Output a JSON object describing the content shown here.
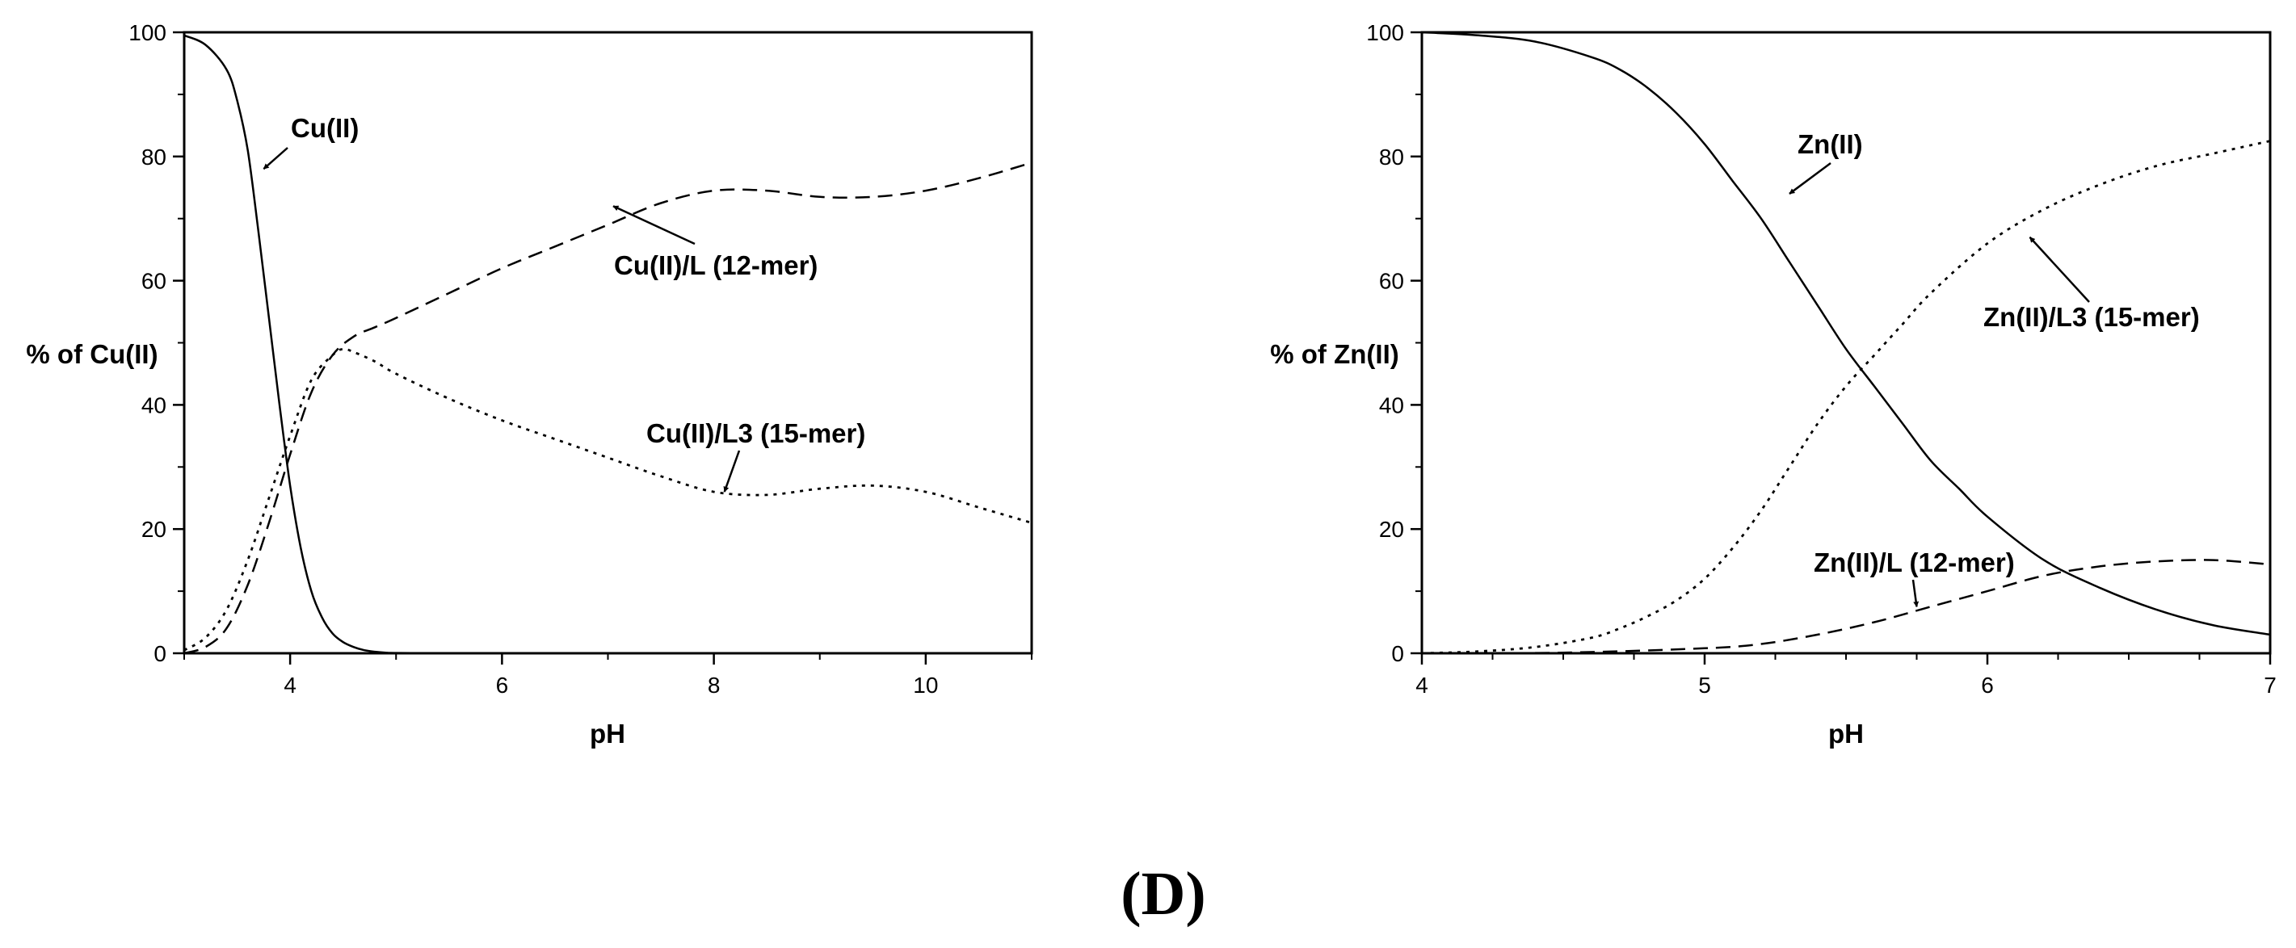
{
  "caption": "(D)",
  "chart_data": [
    {
      "type": "line",
      "xlabel": "pH",
      "ylabel": "% of Cu(II)",
      "xlim": [
        3,
        11
      ],
      "ylim": [
        0,
        100
      ],
      "x_ticks": [
        4,
        6,
        8,
        10
      ],
      "y_ticks": [
        0,
        20,
        40,
        60,
        80,
        100
      ],
      "grid": false,
      "series": [
        {
          "name": "Cu(II)",
          "style": "solid",
          "x": [
            3.0,
            3.2,
            3.4,
            3.5,
            3.6,
            3.7,
            3.8,
            3.9,
            4.0,
            4.1,
            4.2,
            4.3,
            4.4,
            4.5,
            4.6,
            4.7,
            4.8,
            4.9,
            5.0,
            5.5,
            6.0,
            8.0,
            11.0
          ],
          "y": [
            99.5,
            98,
            94,
            89,
            81,
            68,
            54,
            40,
            27,
            17,
            10,
            5.8,
            3.2,
            1.8,
            1.0,
            0.5,
            0.25,
            0.1,
            0.05,
            0,
            0,
            0,
            0
          ]
        },
        {
          "name": "Cu(II)/L (12-mer)",
          "style": "dashed",
          "x": [
            3.0,
            3.2,
            3.4,
            3.6,
            3.8,
            4.0,
            4.2,
            4.4,
            4.6,
            4.8,
            5.0,
            5.5,
            6.0,
            6.5,
            7.0,
            7.5,
            8.0,
            8.5,
            9.0,
            9.5,
            10.0,
            10.5,
            11.0
          ],
          "y": [
            0,
            1,
            4,
            11,
            21,
            32,
            42,
            48,
            51,
            52.5,
            54,
            58,
            62,
            65.5,
            69,
            72.5,
            74.5,
            74.5,
            73.5,
            73.5,
            74.5,
            76.5,
            79
          ]
        },
        {
          "name": "Cu(II)/L3 (15-mer)",
          "style": "dotted",
          "x": [
            3.0,
            3.2,
            3.4,
            3.6,
            3.8,
            4.0,
            4.2,
            4.4,
            4.5,
            4.6,
            4.8,
            5.0,
            5.5,
            6.0,
            6.5,
            7.0,
            7.5,
            8.0,
            8.5,
            9.0,
            9.5,
            10.0,
            10.5,
            11.0
          ],
          "y": [
            0.5,
            2.5,
            7,
            15,
            25,
            35,
            44,
            48,
            49,
            48.5,
            47,
            45,
            41,
            37.5,
            34.5,
            31.5,
            28.5,
            26,
            25.5,
            26.5,
            27,
            26,
            23.5,
            21
          ]
        }
      ],
      "annotations": [
        {
          "text": "Cu(II)",
          "target": [
            3.75,
            78
          ]
        },
        {
          "text": "Cu(II)/L (12-mer)",
          "target": [
            7.05,
            72
          ]
        },
        {
          "text": "Cu(II)/L3 (15-mer)",
          "target": [
            8.1,
            26
          ]
        }
      ]
    },
    {
      "type": "line",
      "xlabel": "pH",
      "ylabel": "% of Zn(II)",
      "xlim": [
        4,
        7
      ],
      "ylim": [
        0,
        100
      ],
      "x_ticks": [
        4,
        5,
        6,
        7
      ],
      "y_ticks": [
        0,
        20,
        40,
        60,
        80,
        100
      ],
      "grid": false,
      "series": [
        {
          "name": "Zn(II)",
          "style": "solid",
          "x": [
            4.0,
            4.2,
            4.4,
            4.6,
            4.7,
            4.8,
            4.9,
            5.0,
            5.1,
            5.2,
            5.3,
            5.4,
            5.5,
            5.6,
            5.7,
            5.8,
            5.9,
            6.0,
            6.2,
            6.4,
            6.6,
            6.8,
            7.0
          ],
          "y": [
            100,
            99.5,
            98.5,
            96,
            94,
            91,
            87,
            82,
            76,
            70,
            63,
            56,
            49,
            43,
            37,
            31,
            26.5,
            22,
            15,
            10.5,
            7,
            4.5,
            3
          ]
        },
        {
          "name": "Zn(II)/L (12-mer)",
          "style": "dashed",
          "x": [
            4.0,
            4.5,
            5.0,
            5.2,
            5.4,
            5.6,
            5.8,
            6.0,
            6.2,
            6.4,
            6.6,
            6.8,
            7.0
          ],
          "y": [
            0,
            0.1,
            0.8,
            1.5,
            3,
            5,
            7.5,
            10,
            12.5,
            14,
            14.8,
            15,
            14.3
          ]
        },
        {
          "name": "Zn(II)/L3 (15-mer)",
          "style": "dotted",
          "x": [
            4.0,
            4.2,
            4.4,
            4.6,
            4.7,
            4.8,
            4.9,
            5.0,
            5.1,
            5.2,
            5.3,
            5.4,
            5.5,
            5.6,
            5.7,
            5.8,
            6.0,
            6.2,
            6.4,
            6.6,
            6.8,
            7.0
          ],
          "y": [
            0,
            0.3,
            1,
            2.5,
            4,
            6,
            8.5,
            12,
            17,
            23,
            30,
            37,
            43,
            48,
            53,
            58,
            66,
            71.5,
            75.5,
            78.5,
            80.5,
            82.5
          ]
        }
      ],
      "annotations": [
        {
          "text": "Zn(II)",
          "target": [
            5.3,
            74
          ]
        },
        {
          "text": "Zn(II)/L3 (15-mer)",
          "target": [
            6.15,
            67
          ]
        },
        {
          "text": "Zn(II)/L (12-mer)",
          "target": [
            5.75,
            7.5
          ]
        }
      ]
    }
  ]
}
